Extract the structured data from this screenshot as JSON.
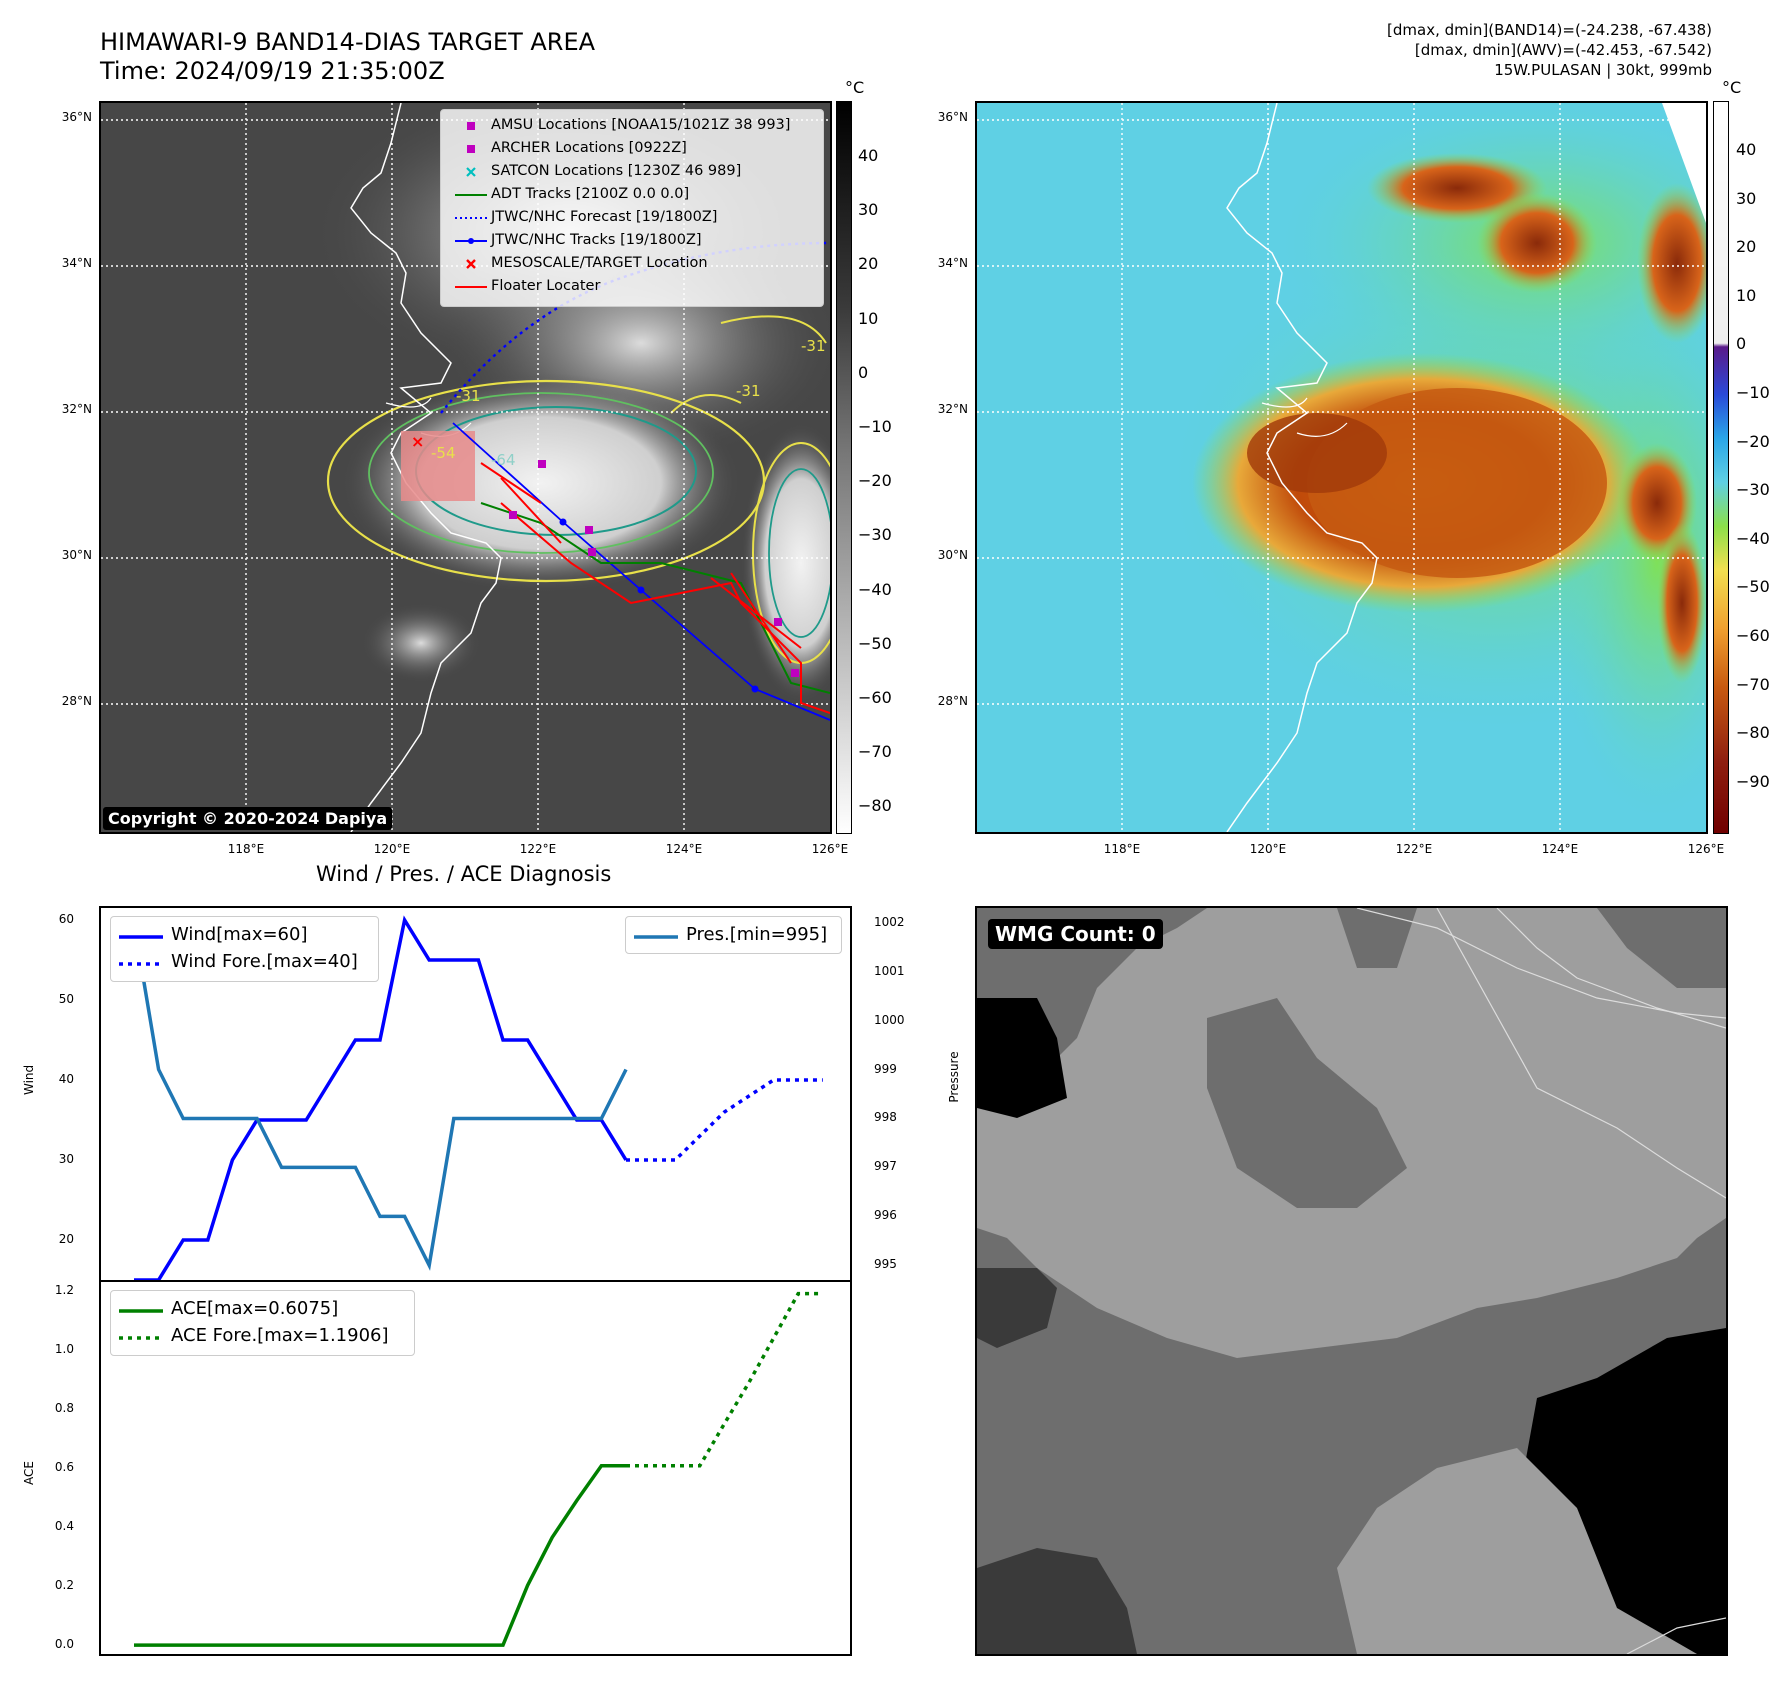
{
  "header": {
    "title_line1": "HIMAWARI-9 BAND14-DIAS TARGET AREA",
    "title_line2": "Time: 2024/09/19 21:35:00Z",
    "right_line1": "[dmax, dmin](BAND14)=(-24.238, -67.438)",
    "right_line2": "[dmax, dmin](AWV)=(-42.453, -67.542)",
    "right_line3": "15W.PULASAN | 30kt, 999mb"
  },
  "map": {
    "lat_labels": [
      "36°N",
      "34°N",
      "32°N",
      "30°N",
      "28°N"
    ],
    "lon_labels": [
      "118°E",
      "120°E",
      "122°E",
      "124°E",
      "126°E"
    ],
    "contour_labels": [
      "-54",
      "-64",
      "-31",
      "-31",
      "-31"
    ],
    "copyright": "Copyright © 2020-2024 Dapiya",
    "legend": [
      {
        "label": "AMSU Locations [NOAA15/1021Z 38 993]",
        "symbol": "square",
        "color": "#bf00bf"
      },
      {
        "label": "ARCHER Locations [0922Z]",
        "symbol": "square",
        "color": "#bf00bf"
      },
      {
        "label": "SATCON Locations [1230Z 46 989]",
        "symbol": "x",
        "color": "#00bfbf"
      },
      {
        "label": "ADT Tracks [2100Z 0.0 0.0]",
        "symbol": "line",
        "color": "#008000"
      },
      {
        "label": "JTWC/NHC Forecast [19/1800Z]",
        "symbol": "dotted",
        "color": "#0000ff"
      },
      {
        "label": "JTWC/NHC Tracks [19/1800Z]",
        "symbol": "dotline",
        "color": "#0000ff"
      },
      {
        "label": "MESOSCALE/TARGET Location",
        "symbol": "x",
        "color": "#ff0000"
      },
      {
        "label": "Floater Locater",
        "symbol": "line",
        "color": "#ff0000"
      }
    ]
  },
  "colorbar_gray": {
    "unit": "°C",
    "ticks": [
      "40",
      "30",
      "20",
      "10",
      "0",
      "−10",
      "−20",
      "−30",
      "−40",
      "−50",
      "−60",
      "−70",
      "−80"
    ]
  },
  "colorbar_color": {
    "unit": "°C",
    "ticks": [
      "40",
      "30",
      "20",
      "10",
      "0",
      "−10",
      "−20",
      "−30",
      "−40",
      "−50",
      "−60",
      "−70",
      "−80",
      "−90"
    ]
  },
  "wmg": {
    "label": "WMG Count: 0"
  },
  "chart_data": [
    {
      "type": "line",
      "title": "Wind / Pres. / ACE Diagnosis",
      "ylabel": "Wind",
      "y2label": "Pressure",
      "ylim": [
        15,
        61.5
      ],
      "y2lim": [
        994.7,
        1002.3
      ],
      "yticks": [
        "20",
        "30",
        "40",
        "50",
        "60"
      ],
      "y2ticks": [
        "995",
        "996",
        "997",
        "998",
        "999",
        "1000",
        "1001",
        "1002"
      ],
      "series": [
        {
          "name": "Wind[max=60]",
          "axis": "left",
          "style": "solid",
          "color": "#0000ff",
          "x": [
            0,
            1,
            2,
            3,
            4,
            5,
            6,
            7,
            8,
            9,
            10,
            11,
            12,
            13,
            14,
            15,
            16,
            17,
            18,
            19,
            20
          ],
          "values": [
            15,
            15,
            20,
            20,
            30,
            35,
            35,
            35,
            40,
            45,
            45,
            60,
            55,
            55,
            55,
            45,
            45,
            40,
            35,
            35,
            30
          ]
        },
        {
          "name": "Wind Fore.[max=40]",
          "axis": "left",
          "style": "dotted",
          "color": "#0000ff",
          "x": [
            20,
            21,
            22,
            23,
            24,
            25,
            26,
            27,
            28
          ],
          "values": [
            30,
            30,
            30,
            33,
            36,
            38,
            40,
            40,
            40
          ]
        },
        {
          "name": "Pres.[min=995]",
          "axis": "right",
          "style": "solid",
          "color": "#1f77b4",
          "x": [
            0,
            1,
            2,
            3,
            4,
            5,
            6,
            7,
            8,
            9,
            10,
            11,
            12,
            13,
            14,
            15,
            16,
            17,
            18,
            19,
            20
          ],
          "values": [
            1002,
            999,
            998,
            998,
            998,
            998,
            997,
            997,
            997,
            997,
            996,
            996,
            995,
            998,
            998,
            998,
            998,
            998,
            998,
            998,
            999
          ]
        }
      ]
    },
    {
      "type": "line",
      "ylabel": "ACE",
      "ylim": [
        -0.03,
        1.23
      ],
      "yticks": [
        "0.0",
        "0.2",
        "0.4",
        "0.6",
        "0.8",
        "1.0",
        "1.2"
      ],
      "series": [
        {
          "name": "ACE[max=0.6075]",
          "style": "solid",
          "color": "#008000",
          "x": [
            0,
            1,
            2,
            3,
            4,
            5,
            6,
            7,
            8,
            9,
            10,
            11,
            12,
            13,
            14,
            15,
            16,
            17,
            18,
            19,
            20
          ],
          "values": [
            0,
            0,
            0,
            0,
            0,
            0,
            0,
            0,
            0,
            0,
            0,
            0,
            0,
            0,
            0,
            0,
            0.2025,
            0.365,
            0.49,
            0.6075,
            0.6075
          ]
        },
        {
          "name": "ACE Fore.[max=1.1906]",
          "style": "dotted",
          "color": "#008000",
          "x": [
            20,
            21,
            22,
            23,
            24,
            25,
            26,
            27,
            28
          ],
          "values": [
            0.6075,
            0.6075,
            0.6075,
            0.6075,
            0.75,
            0.89,
            1.04,
            1.1906,
            1.1906
          ]
        }
      ]
    }
  ]
}
